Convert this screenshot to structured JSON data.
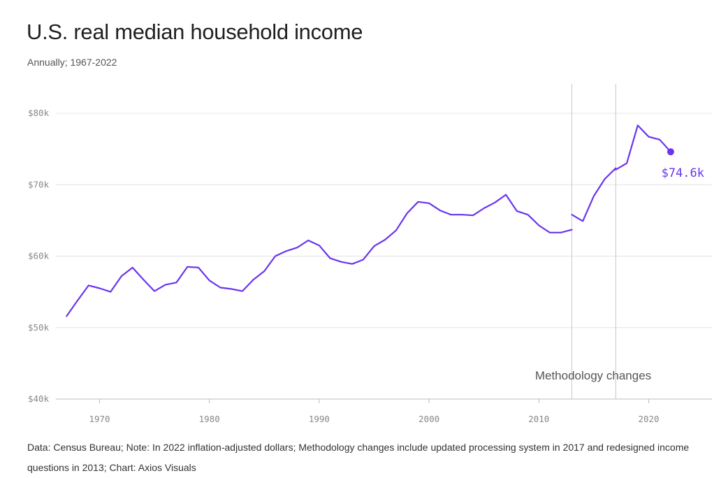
{
  "title": "U.S. real median household income",
  "subtitle": "Annually; 1967-2022",
  "note": "Data: Census Bureau; Note: In 2022 inflation-adjusted dollars; Methodology changes include updated processing system in 2017 and redesigned income questions in 2013; Chart: Axios Visuals",
  "colors": {
    "line": "#6a35ee",
    "grid": "#e4e4e4",
    "axis_text": "#888888",
    "annotation_text": "#555555"
  },
  "chart_data": {
    "type": "line",
    "title": "U.S. real median household income",
    "subtitle": "Annually; 1967-2022",
    "xlim": [
      1966,
      2026
    ],
    "ylim": [
      40000,
      80000
    ],
    "x_ticks": [
      1970,
      1980,
      1990,
      2000,
      2010,
      2020
    ],
    "x_tick_labels": [
      "1970",
      "1980",
      "1990",
      "2000",
      "2010",
      "2020"
    ],
    "y_ticks": [
      40000,
      50000,
      60000,
      70000,
      80000
    ],
    "y_tick_labels": [
      "$40k",
      "$50k",
      "$60k",
      "$70k",
      "$80k"
    ],
    "grid": "horizontal",
    "legend": "none",
    "segments": [
      {
        "x": [
          1967,
          1968,
          1969,
          1970,
          1971,
          1972,
          1973,
          1974,
          1975,
          1976,
          1977,
          1978,
          1979,
          1980,
          1981,
          1982,
          1983,
          1984,
          1985,
          1986,
          1987,
          1988,
          1989,
          1990,
          1991,
          1992,
          1993,
          1994,
          1995,
          1996,
          1997,
          1998,
          1999,
          2000,
          2001,
          2002,
          2003,
          2004,
          2005,
          2006,
          2007,
          2008,
          2009,
          2010,
          2011,
          2012,
          2013
        ],
        "y": [
          51600,
          53800,
          55900,
          55500,
          55000,
          57200,
          58400,
          56700,
          55100,
          56000,
          56300,
          58500,
          58400,
          56600,
          55600,
          55400,
          55100,
          56700,
          57900,
          60000,
          60700,
          61200,
          62200,
          61500,
          59700,
          59200,
          58900,
          59500,
          61400,
          62300,
          63600,
          66000,
          67600,
          67400,
          66400,
          65800,
          65800,
          65700,
          66700,
          67500,
          68600,
          66300,
          65800,
          64300,
          63300,
          63300,
          63700
        ]
      },
      {
        "x": [
          2013,
          2014,
          2015,
          2016,
          2017
        ],
        "y": [
          65800,
          64900,
          68400,
          70800,
          72300
        ]
      },
      {
        "x": [
          2017,
          2018,
          2019,
          2020,
          2021,
          2022
        ],
        "y": [
          72100,
          73000,
          78300,
          76700,
          76300,
          74600
        ]
      }
    ],
    "methodology_changes": [
      2013,
      2017
    ],
    "annotations": [
      {
        "text": "Methodology changes"
      },
      {
        "text": "$74.6k",
        "x": 2022,
        "y": 74600
      }
    ]
  }
}
